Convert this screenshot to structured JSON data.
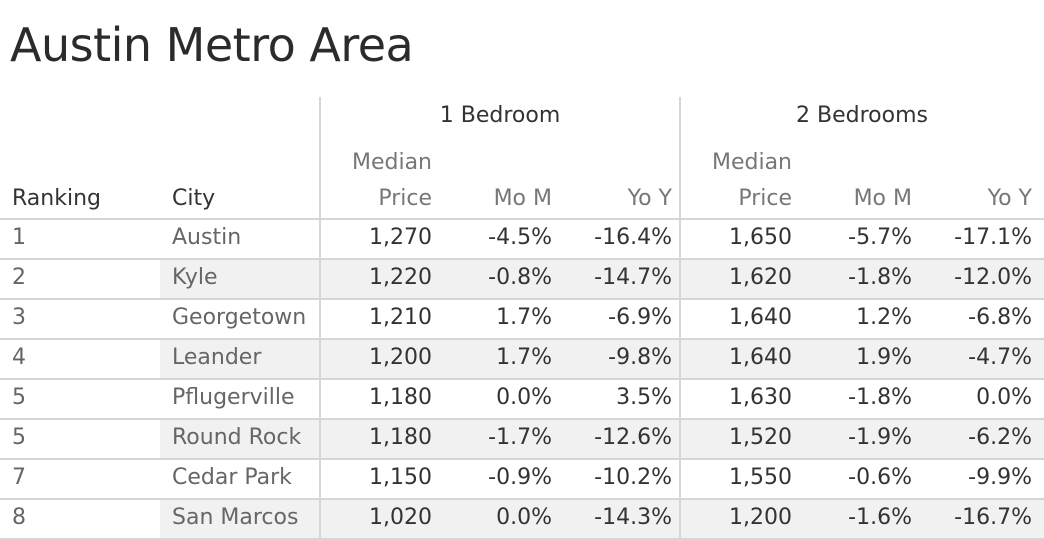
{
  "title": "Austin Metro Area",
  "chart_data": {
    "type": "table",
    "title": "Austin Metro Area",
    "groups": [
      "1 Bedroom",
      "2 Bedrooms"
    ],
    "header": {
      "ranking": "Ranking",
      "city": "City",
      "median_top": "Median",
      "median_bottom": "Price",
      "mom": "Mo M",
      "yoy": "Yo Y"
    },
    "columns": [
      "Ranking",
      "City",
      "1BR Median Price",
      "1BR MoM",
      "1BR YoY",
      "2BR Median Price",
      "2BR MoM",
      "2BR YoY"
    ],
    "rows": [
      {
        "rank": "1",
        "city": "Austin",
        "b1_price": "1,270",
        "b1_mom": "-4.5%",
        "b1_yoy": "-16.4%",
        "b2_price": "1,650",
        "b2_mom": "-5.7%",
        "b2_yoy": "-17.1%"
      },
      {
        "rank": "2",
        "city": "Kyle",
        "b1_price": "1,220",
        "b1_mom": "-0.8%",
        "b1_yoy": "-14.7%",
        "b2_price": "1,620",
        "b2_mom": "-1.8%",
        "b2_yoy": "-12.0%"
      },
      {
        "rank": "3",
        "city": "Georgetown",
        "b1_price": "1,210",
        "b1_mom": "1.7%",
        "b1_yoy": "-6.9%",
        "b2_price": "1,640",
        "b2_mom": "1.2%",
        "b2_yoy": "-6.8%"
      },
      {
        "rank": "4",
        "city": "Leander",
        "b1_price": "1,200",
        "b1_mom": "1.7%",
        "b1_yoy": "-9.8%",
        "b2_price": "1,640",
        "b2_mom": "1.9%",
        "b2_yoy": "-4.7%"
      },
      {
        "rank": "5",
        "city": "Pflugerville",
        "b1_price": "1,180",
        "b1_mom": "0.0%",
        "b1_yoy": "3.5%",
        "b2_price": "1,630",
        "b2_mom": "-1.8%",
        "b2_yoy": "0.0%"
      },
      {
        "rank": "5",
        "city": "Round Rock",
        "b1_price": "1,180",
        "b1_mom": "-1.7%",
        "b1_yoy": "-12.6%",
        "b2_price": "1,520",
        "b2_mom": "-1.9%",
        "b2_yoy": "-6.2%"
      },
      {
        "rank": "7",
        "city": "Cedar Park",
        "b1_price": "1,150",
        "b1_mom": "-0.9%",
        "b1_yoy": "-10.2%",
        "b2_price": "1,550",
        "b2_mom": "-0.6%",
        "b2_yoy": "-9.9%"
      },
      {
        "rank": "8",
        "city": "San Marcos",
        "b1_price": "1,020",
        "b1_mom": "0.0%",
        "b1_yoy": "-14.3%",
        "b2_price": "1,200",
        "b2_mom": "-1.6%",
        "b2_yoy": "-16.7%"
      }
    ]
  }
}
